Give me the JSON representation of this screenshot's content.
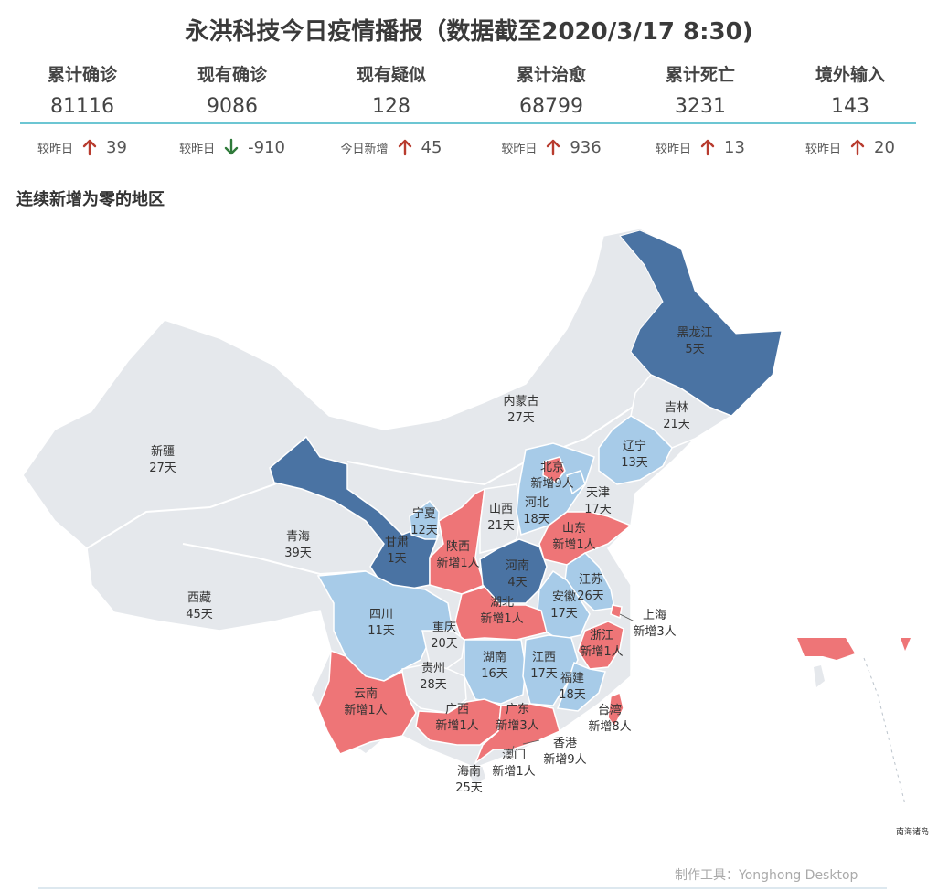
{
  "title": "永洪科技今日疫情播报（数据截至2020/3/17 8:30)",
  "stats": [
    {
      "label": "累计确诊",
      "value": "81116",
      "delta_label": "较昨日",
      "direction": "up",
      "delta": "39"
    },
    {
      "label": "现有确诊",
      "value": "9086",
      "delta_label": "较昨日",
      "direction": "down",
      "delta": "-910"
    },
    {
      "label": "现有疑似",
      "value": "128",
      "delta_label": "今日新增",
      "direction": "up",
      "delta": "45"
    },
    {
      "label": "累计治愈",
      "value": "68799",
      "delta_label": "较昨日",
      "direction": "up",
      "delta": "936"
    },
    {
      "label": "累计死亡",
      "value": "3231",
      "delta_label": "较昨日",
      "direction": "up",
      "delta": "13"
    },
    {
      "label": "境外输入",
      "value": "143",
      "delta_label": "较昨日",
      "direction": "up",
      "delta": "20"
    }
  ],
  "colors": {
    "up_arrow": "#b83b2e",
    "down_arrow": "#2f7a3a",
    "accent_rule": "#6cc6d3",
    "dark_blue": "#4a73a3",
    "light_blue": "#a7cbe8",
    "red": "#ee7577",
    "gray": "#e5e8ec"
  },
  "section_title": "连续新增为零的地区",
  "map": {
    "regions": [
      {
        "name": "黑龙江",
        "status": "5天",
        "category": "dark_blue"
      },
      {
        "name": "吉林",
        "status": "21天",
        "category": "gray"
      },
      {
        "name": "辽宁",
        "status": "13天",
        "category": "light_blue"
      },
      {
        "name": "内蒙古",
        "status": "27天",
        "category": "gray"
      },
      {
        "name": "新疆",
        "status": "27天",
        "category": "gray"
      },
      {
        "name": "北京",
        "status": "新增9人",
        "category": "red"
      },
      {
        "name": "天津",
        "status": "17天",
        "category": "light_blue"
      },
      {
        "name": "河北",
        "status": "18天",
        "category": "light_blue"
      },
      {
        "name": "山西",
        "status": "21天",
        "category": "gray"
      },
      {
        "name": "宁夏",
        "status": "12天",
        "category": "light_blue"
      },
      {
        "name": "青海",
        "status": "39天",
        "category": "gray"
      },
      {
        "name": "甘肃",
        "status": "1天",
        "category": "dark_blue"
      },
      {
        "name": "陕西",
        "status": "新增1人",
        "category": "red"
      },
      {
        "name": "山东",
        "status": "新增1人",
        "category": "red"
      },
      {
        "name": "河南",
        "status": "4天",
        "category": "dark_blue"
      },
      {
        "name": "江苏",
        "status": "26天",
        "category": "light_blue"
      },
      {
        "name": "西藏",
        "status": "45天",
        "category": "gray"
      },
      {
        "name": "四川",
        "status": "11天",
        "category": "light_blue"
      },
      {
        "name": "湖北",
        "status": "新增1人",
        "category": "red"
      },
      {
        "name": "安徽",
        "status": "17天",
        "category": "light_blue"
      },
      {
        "name": "上海",
        "status": "新增3人",
        "category": "red"
      },
      {
        "name": "重庆",
        "status": "20天",
        "category": "gray"
      },
      {
        "name": "浙江",
        "status": "新增1人",
        "category": "red"
      },
      {
        "name": "湖南",
        "status": "16天",
        "category": "light_blue"
      },
      {
        "name": "江西",
        "status": "17天",
        "category": "light_blue"
      },
      {
        "name": "贵州",
        "status": "28天",
        "category": "gray"
      },
      {
        "name": "福建",
        "status": "18天",
        "category": "light_blue"
      },
      {
        "name": "云南",
        "status": "新增1人",
        "category": "red"
      },
      {
        "name": "广西",
        "status": "新增1人",
        "category": "red"
      },
      {
        "name": "广东",
        "status": "新增3人",
        "category": "red"
      },
      {
        "name": "台湾",
        "status": "新增8人",
        "category": "red"
      },
      {
        "name": "香港",
        "status": "新增9人",
        "category": "red"
      },
      {
        "name": "澳门",
        "status": "新增1人",
        "category": "red"
      },
      {
        "name": "海南",
        "status": "25天",
        "category": "gray"
      }
    ],
    "inset_label": "南海诸岛"
  },
  "credit": "制作工具：Yonghong Desktop"
}
